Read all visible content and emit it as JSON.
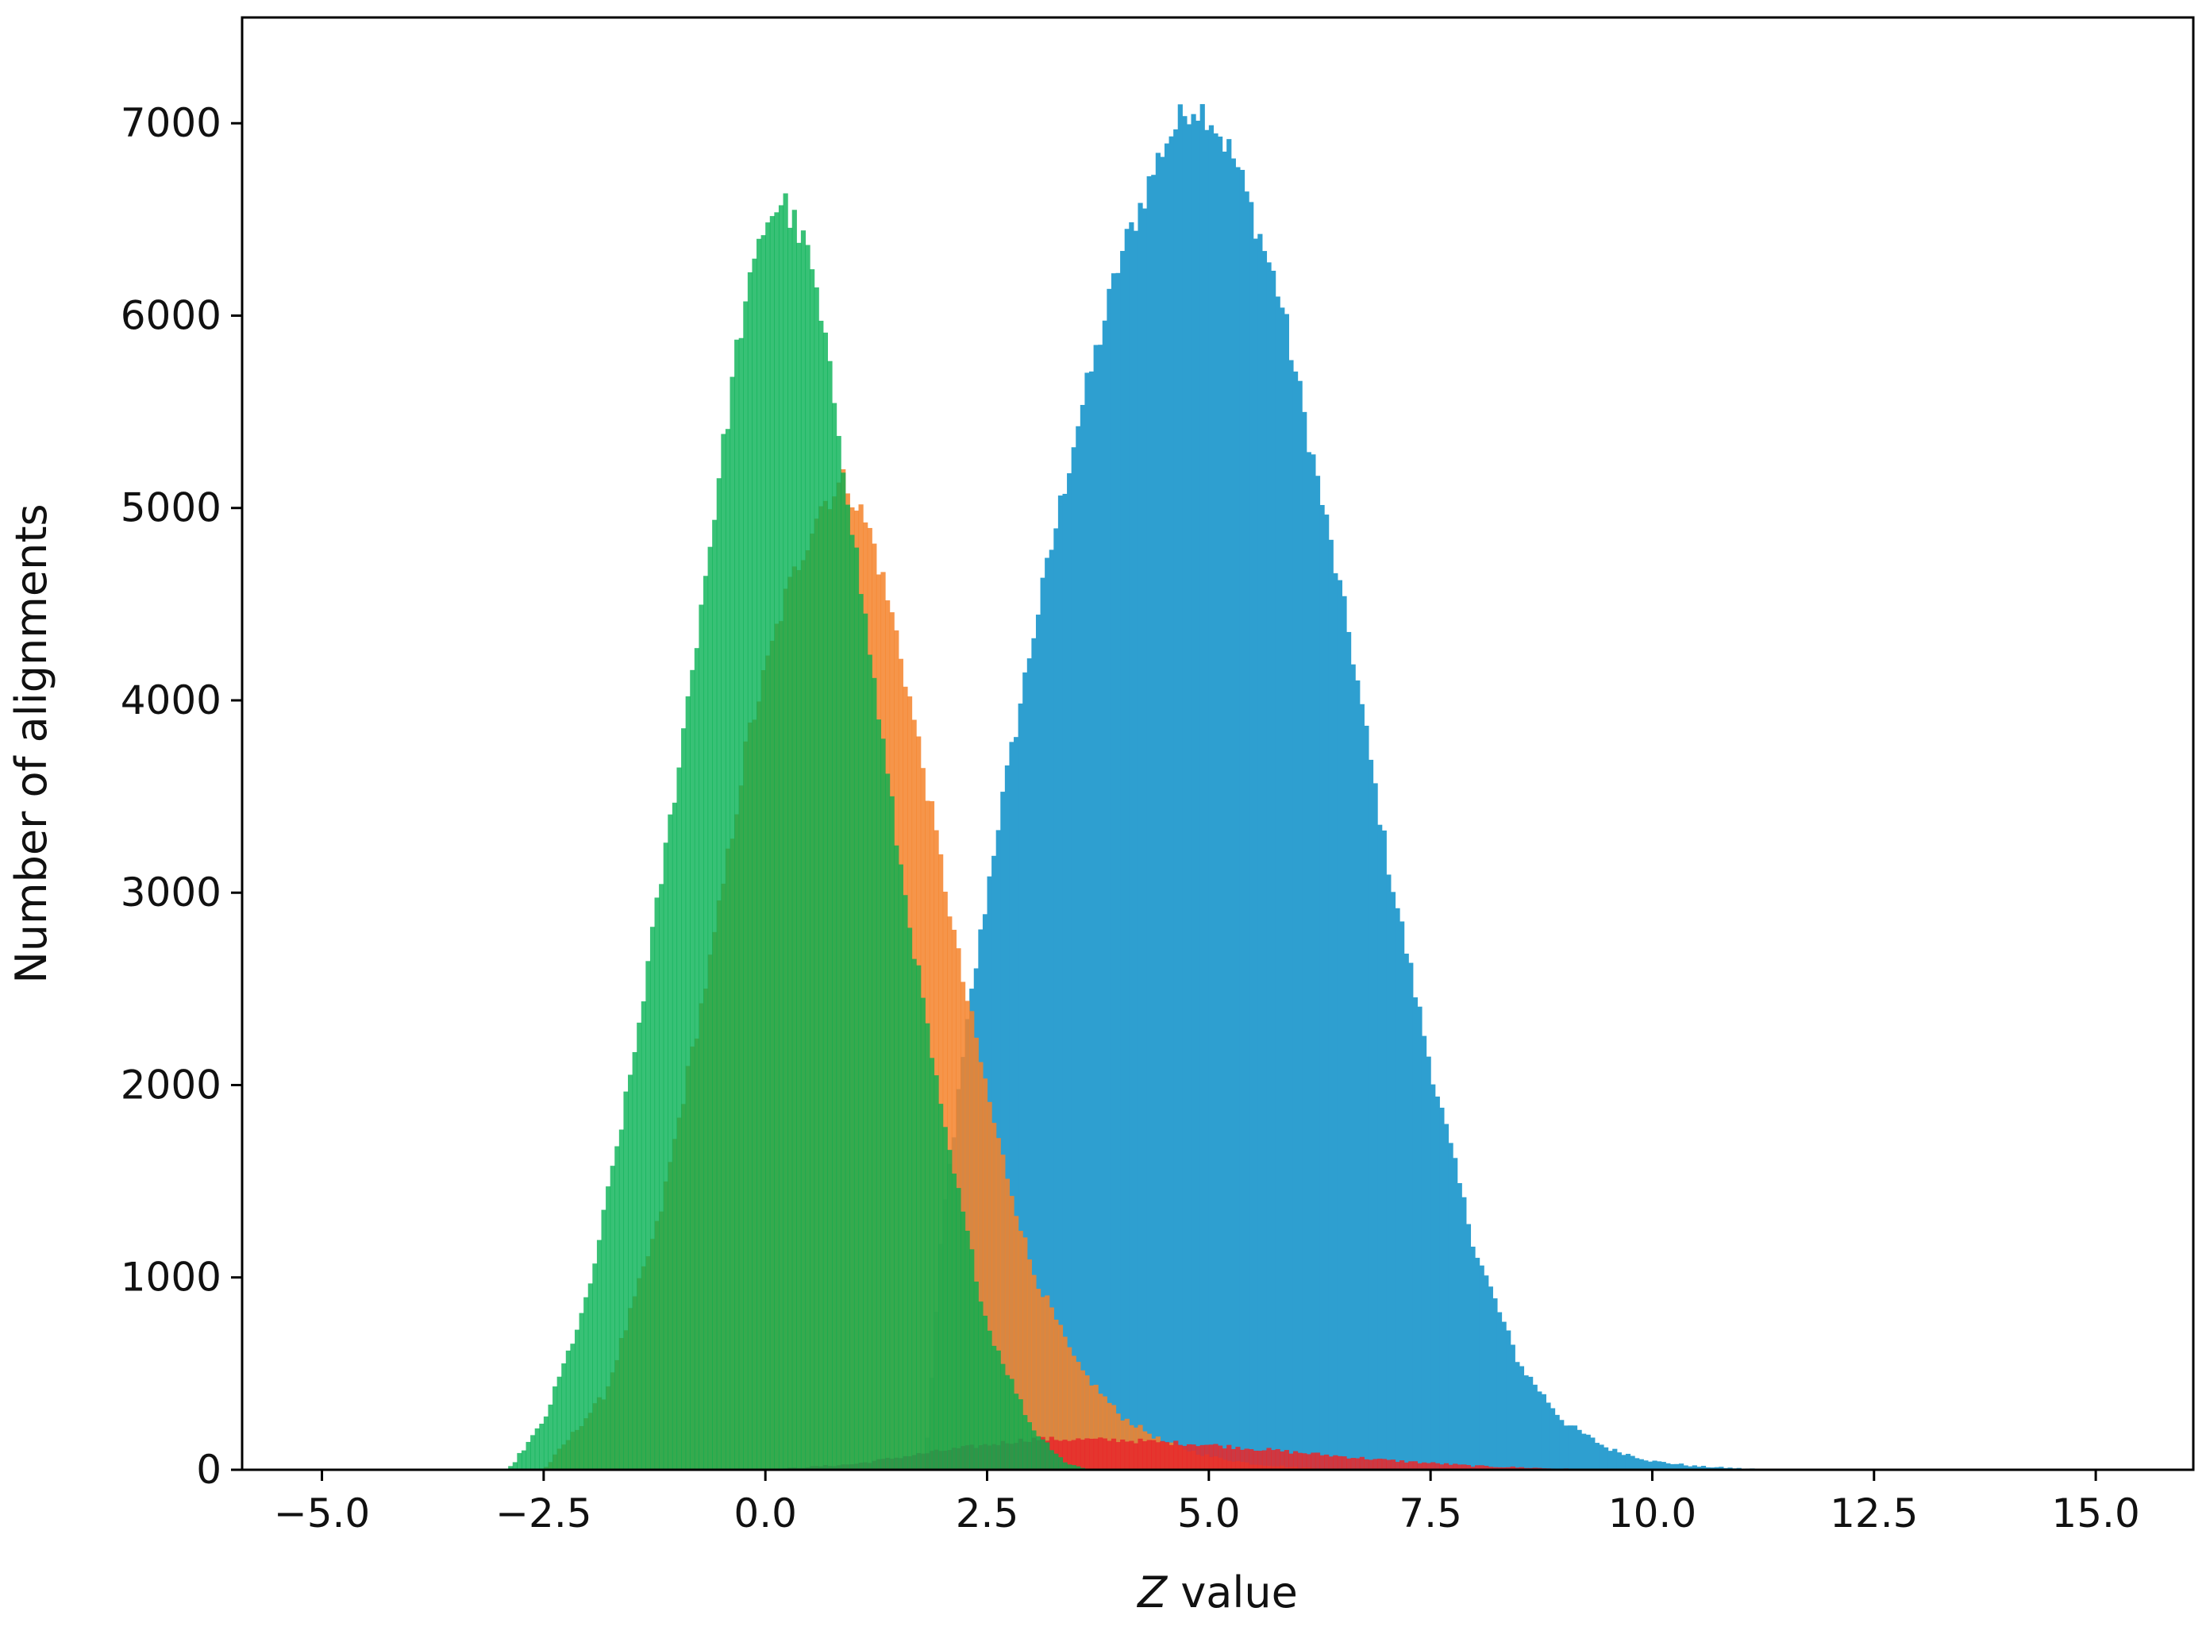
{
  "chart_data": {
    "type": "histogram",
    "xlabel_prefix": "Z",
    "xlabel_suffix": " value",
    "ylabel": "Number of alignments",
    "xlim": [
      -5.9,
      16.1
    ],
    "ylim": [
      0,
      7550
    ],
    "x_ticks": [
      -5.0,
      -2.5,
      0.0,
      2.5,
      5.0,
      7.5,
      10.0,
      12.5,
      15.0
    ],
    "x_tick_labels": [
      "−5.0",
      "−2.5",
      "0.0",
      "2.5",
      "5.0",
      "7.5",
      "10.0",
      "12.5",
      "15.0"
    ],
    "y_ticks": [
      0,
      1000,
      2000,
      3000,
      4000,
      5000,
      6000,
      7000
    ],
    "y_tick_labels": [
      "0",
      "1000",
      "2000",
      "3000",
      "4000",
      "5000",
      "6000",
      "7000"
    ],
    "grid": false,
    "legend": "none",
    "series": [
      {
        "color": "#2e9fd0",
        "opacity": 1.0,
        "points": [
          [
            1.8,
            0
          ],
          [
            2.0,
            1300
          ],
          [
            2.3,
            2400
          ],
          [
            2.6,
            3300
          ],
          [
            3.0,
            4300
          ],
          [
            3.5,
            5400
          ],
          [
            4.0,
            6300
          ],
          [
            4.5,
            6900
          ],
          [
            4.8,
            7100
          ],
          [
            5.0,
            7050
          ],
          [
            5.3,
            6800
          ],
          [
            5.8,
            6100
          ],
          [
            6.2,
            5200
          ],
          [
            6.6,
            4300
          ],
          [
            7.0,
            3200
          ],
          [
            7.5,
            2100
          ],
          [
            8.0,
            1150
          ],
          [
            8.5,
            550
          ],
          [
            9.0,
            250
          ],
          [
            9.5,
            110
          ],
          [
            10.0,
            45
          ],
          [
            10.5,
            18
          ],
          [
            11.0,
            7
          ],
          [
            11.5,
            2
          ],
          [
            12.0,
            0
          ]
        ]
      },
      {
        "color": "#f5822a",
        "opacity": 0.85,
        "points": [
          [
            -2.5,
            0
          ],
          [
            -1.8,
            400
          ],
          [
            -1.2,
            1300
          ],
          [
            -0.6,
            2700
          ],
          [
            -0.2,
            3800
          ],
          [
            0.2,
            4500
          ],
          [
            0.6,
            5000
          ],
          [
            0.9,
            5150
          ],
          [
            1.2,
            4850
          ],
          [
            1.5,
            4300
          ],
          [
            1.8,
            3600
          ],
          [
            2.2,
            2600
          ],
          [
            2.6,
            1750
          ],
          [
            3.0,
            1050
          ],
          [
            3.5,
            550
          ],
          [
            4.0,
            280
          ],
          [
            4.5,
            140
          ],
          [
            5.0,
            70
          ],
          [
            5.5,
            30
          ],
          [
            6.0,
            12
          ],
          [
            6.5,
            4
          ],
          [
            7.0,
            0
          ]
        ]
      },
      {
        "color": "#e8272a",
        "opacity": 0.85,
        "points": [
          [
            0.0,
            0
          ],
          [
            1.0,
            30
          ],
          [
            2.0,
            100
          ],
          [
            3.0,
            160
          ],
          [
            4.0,
            155
          ],
          [
            5.0,
            130
          ],
          [
            6.0,
            90
          ],
          [
            7.0,
            50
          ],
          [
            8.0,
            20
          ],
          [
            9.0,
            5
          ],
          [
            10.0,
            0
          ]
        ]
      },
      {
        "color": "#00b050",
        "opacity": 0.78,
        "points": [
          [
            -2.9,
            0
          ],
          [
            -2.5,
            250
          ],
          [
            -2.0,
            900
          ],
          [
            -1.5,
            2100
          ],
          [
            -1.0,
            3600
          ],
          [
            -0.6,
            4900
          ],
          [
            -0.3,
            5900
          ],
          [
            0.0,
            6500
          ],
          [
            0.2,
            6600
          ],
          [
            0.5,
            6300
          ],
          [
            0.8,
            5500
          ],
          [
            1.1,
            4500
          ],
          [
            1.5,
            3200
          ],
          [
            2.0,
            1800
          ],
          [
            2.5,
            750
          ],
          [
            3.0,
            220
          ],
          [
            3.4,
            30
          ],
          [
            3.7,
            0
          ]
        ]
      }
    ]
  }
}
